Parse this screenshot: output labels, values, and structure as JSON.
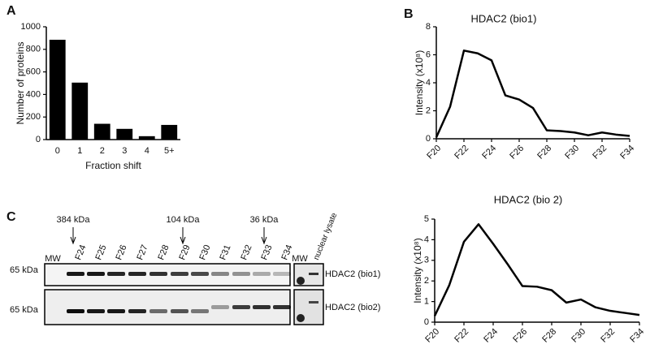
{
  "panel_labels": [
    "A",
    "B",
    "C"
  ],
  "chart_data": [
    {
      "type": "bar",
      "xlabel": "Fraction shift",
      "ylabel": "Number of proteins",
      "categories": [
        "0",
        "1",
        "2",
        "3",
        "4",
        "5+"
      ],
      "values": [
        885,
        505,
        140,
        95,
        30,
        130
      ],
      "color": "#000000",
      "ylim": [
        0,
        1000
      ],
      "yticks": [
        0,
        200,
        400,
        600,
        800,
        1000
      ]
    },
    {
      "type": "line",
      "title": "HDAC2 (bio1)",
      "ylabel": "Intensity (x10⁸)",
      "categories": [
        "F20",
        null,
        "F22",
        null,
        "F24",
        null,
        "F26",
        null,
        "F28",
        null,
        "F30",
        null,
        "F32",
        null,
        "F34"
      ],
      "values": [
        0.1,
        2.3,
        6.3,
        6.1,
        5.6,
        3.1,
        2.8,
        2.2,
        0.6,
        0.55,
        0.45,
        0.25,
        0.45,
        0.3,
        0.2
      ],
      "color": "#000000",
      "ylim": [
        0,
        8
      ],
      "yticks": [
        0,
        2,
        4,
        6,
        8
      ]
    },
    {
      "type": "line",
      "title": "HDAC2 (bio 2)",
      "ylabel": "Intensity (x10⁸)",
      "categories": [
        "F20",
        null,
        "F22",
        null,
        "F24",
        null,
        "F26",
        null,
        "F28",
        null,
        "F30",
        null,
        "F32",
        null,
        "F34"
      ],
      "values": [
        0.3,
        1.8,
        3.9,
        4.75,
        3.8,
        2.8,
        1.75,
        1.72,
        1.55,
        0.95,
        1.1,
        0.72,
        0.55,
        0.45,
        0.35
      ],
      "color": "#000000",
      "ylim": [
        0,
        5
      ],
      "yticks": [
        0,
        1,
        2,
        3,
        4,
        5
      ]
    }
  ],
  "blot": {
    "markers": [
      "384 kDa",
      "104 kDa",
      "36 kDa"
    ],
    "lanes": [
      "MW",
      "F24",
      "F25",
      "F26",
      "F27",
      "F28",
      "F29",
      "F30",
      "F31",
      "F32",
      "F33",
      "F34"
    ],
    "extra_lanes": [
      "MW",
      "nuclear lysate"
    ],
    "size_labels": [
      "65 kDa",
      "65 kDa"
    ],
    "rows": [
      "HDAC2 (bio1)",
      "HDAC2 (bio2)"
    ]
  }
}
